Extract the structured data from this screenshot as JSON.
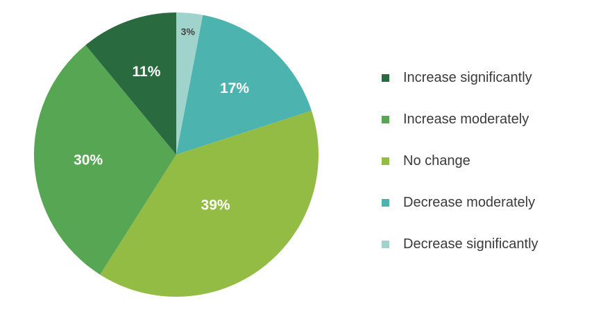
{
  "chart_data": {
    "type": "pie",
    "start_angle_deg": 0,
    "direction": "clockwise",
    "legend_position": "right",
    "slices": [
      {
        "name": "Decrease significantly",
        "value": 3,
        "label": "3%",
        "color": "#9fd3cc",
        "label_color": "#444444"
      },
      {
        "name": "Decrease moderately",
        "value": 17,
        "label": "17%",
        "color": "#4db3ae",
        "label_color": "#ffffff"
      },
      {
        "name": "No change",
        "value": 39,
        "label": "39%",
        "color": "#93bc45",
        "label_color": "#ffffff"
      },
      {
        "name": "Increase moderately",
        "value": 30,
        "label": "30%",
        "color": "#57a653",
        "label_color": "#ffffff"
      },
      {
        "name": "Increase significantly",
        "value": 11,
        "label": "11%",
        "color": "#2a6a3f",
        "label_color": "#ffffff"
      }
    ]
  },
  "legend": {
    "items": [
      {
        "label": "Increase significantly",
        "color": "#2a6a3f"
      },
      {
        "label": "Increase moderately",
        "color": "#57a653"
      },
      {
        "label": "No change",
        "color": "#93bc45"
      },
      {
        "label": "Decrease moderately",
        "color": "#4db3ae"
      },
      {
        "label": "Decrease significantly",
        "color": "#9fd3cc"
      }
    ]
  }
}
